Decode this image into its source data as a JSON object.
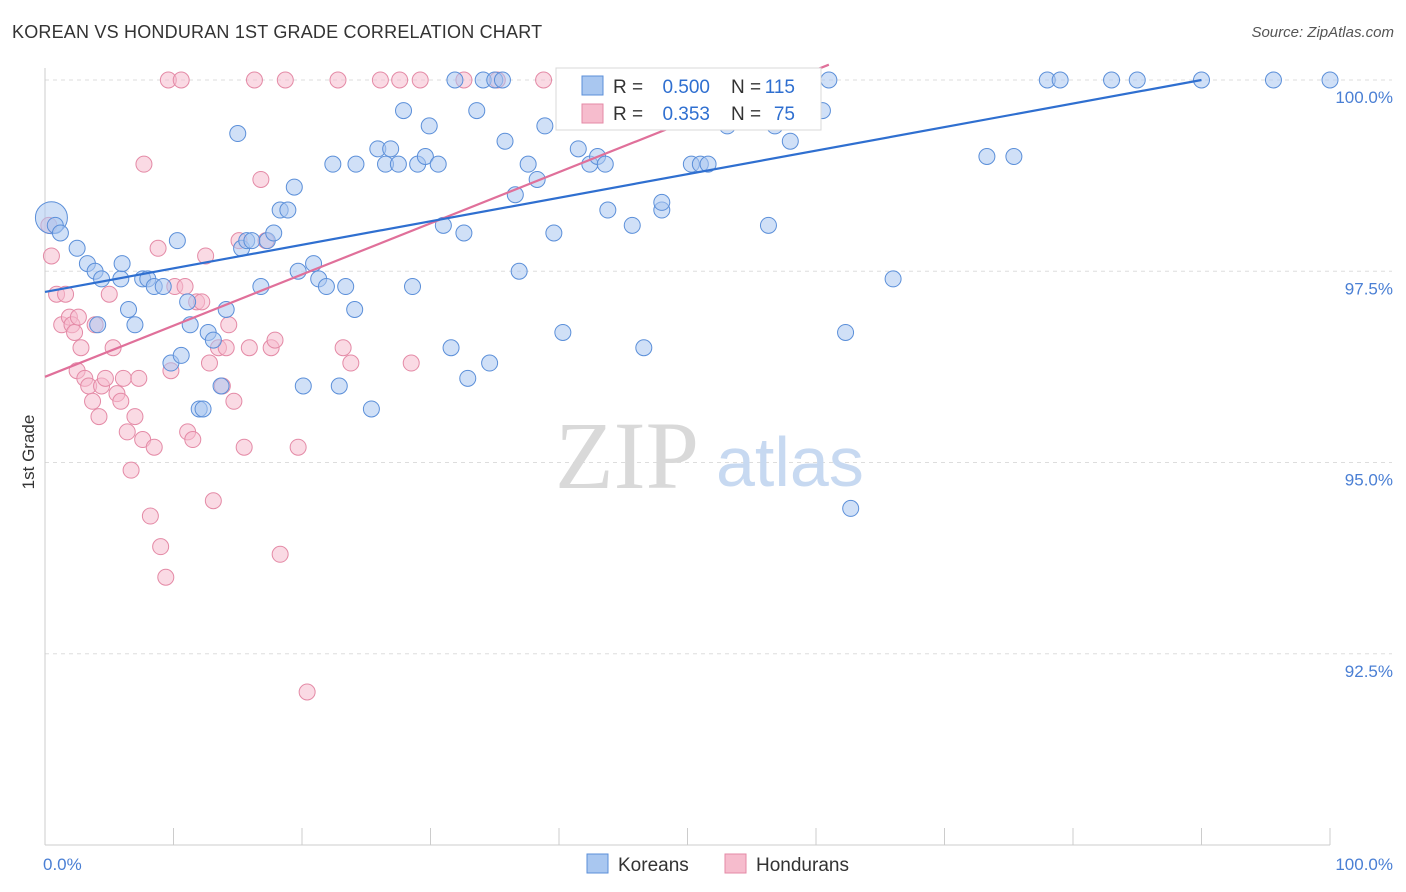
{
  "header": {
    "title": "KOREAN VS HONDURAN 1ST GRADE CORRELATION CHART",
    "source": "Source: ZipAtlas.com"
  },
  "watermark": {
    "zip": "ZIP",
    "atlas": "atlas"
  },
  "colors": {
    "korean_fill": "#a9c7f0",
    "korean_stroke": "#5b8fd9",
    "korean_line": "#2f6fd0",
    "honduran_fill": "#f6bccd",
    "honduran_stroke": "#e48aa6",
    "honduran_line": "#e0709a",
    "tick_text": "#4a7fd4",
    "grid": "#dddddd"
  },
  "chart_data": {
    "type": "scatter",
    "title": "KOREAN VS HONDURAN 1ST GRADE CORRELATION CHART",
    "ylabel": "1st Grade",
    "xlabel": "",
    "xlim": [
      0,
      100
    ],
    "ylim": [
      90.0,
      100.5
    ],
    "x_tick_labels": [
      {
        "value": 0,
        "label": "0.0%"
      },
      {
        "value": 100,
        "label": "100.0%"
      }
    ],
    "y_tick_labels": [
      {
        "value": 100.0,
        "label": "100.0%"
      },
      {
        "value": 97.5,
        "label": "97.5%"
      },
      {
        "value": 95.0,
        "label": "95.0%"
      },
      {
        "value": 92.5,
        "label": "92.5%"
      }
    ],
    "legend_position": "bottom-center",
    "stats_box": [
      {
        "series": "Koreans",
        "r_label": "R =",
        "r": "0.500",
        "n_label": "N =",
        "n": "115"
      },
      {
        "series": "Hondurans",
        "r_label": "R =",
        "r": "0.353",
        "n_label": "N =",
        "n": "75"
      }
    ],
    "series": [
      {
        "name": "Koreans",
        "trend": {
          "x": [
            0,
            90
          ],
          "y": [
            97.23,
            100.0
          ]
        },
        "points": [
          [
            0.5,
            98.2
          ],
          [
            0.8,
            98.1
          ],
          [
            1.2,
            98.0
          ],
          [
            2.5,
            97.8
          ],
          [
            3.3,
            97.6
          ],
          [
            3.9,
            97.5
          ],
          [
            4.4,
            97.4
          ],
          [
            5.9,
            97.4
          ],
          [
            6.0,
            97.6
          ],
          [
            4.1,
            96.8
          ],
          [
            6.5,
            97.0
          ],
          [
            7.0,
            96.8
          ],
          [
            7.6,
            97.4
          ],
          [
            8.0,
            97.4
          ],
          [
            8.5,
            97.3
          ],
          [
            9.2,
            97.3
          ],
          [
            9.8,
            96.3
          ],
          [
            10.3,
            97.9
          ],
          [
            10.6,
            96.4
          ],
          [
            11.1,
            97.1
          ],
          [
            11.3,
            96.8
          ],
          [
            12.0,
            95.7
          ],
          [
            12.3,
            95.7
          ],
          [
            12.7,
            96.7
          ],
          [
            13.1,
            96.6
          ],
          [
            13.7,
            96.0
          ],
          [
            14.1,
            97.0
          ],
          [
            15.0,
            99.3
          ],
          [
            15.3,
            97.8
          ],
          [
            15.7,
            97.9
          ],
          [
            16.1,
            97.9
          ],
          [
            16.8,
            97.3
          ],
          [
            17.3,
            97.9
          ],
          [
            17.8,
            98.0
          ],
          [
            18.3,
            98.3
          ],
          [
            18.9,
            98.3
          ],
          [
            19.4,
            98.6
          ],
          [
            19.7,
            97.5
          ],
          [
            20.1,
            96.0
          ],
          [
            20.9,
            97.6
          ],
          [
            21.3,
            97.4
          ],
          [
            21.9,
            97.3
          ],
          [
            22.4,
            98.9
          ],
          [
            22.9,
            96.0
          ],
          [
            23.4,
            97.3
          ],
          [
            24.1,
            97.0
          ],
          [
            24.2,
            98.9
          ],
          [
            25.4,
            95.7
          ],
          [
            25.9,
            99.1
          ],
          [
            26.5,
            98.9
          ],
          [
            26.9,
            99.1
          ],
          [
            27.5,
            98.9
          ],
          [
            27.9,
            99.6
          ],
          [
            28.6,
            97.3
          ],
          [
            29.0,
            98.9
          ],
          [
            29.6,
            99.0
          ],
          [
            29.9,
            99.4
          ],
          [
            30.6,
            98.9
          ],
          [
            31.0,
            98.1
          ],
          [
            31.6,
            96.5
          ],
          [
            31.9,
            100.0
          ],
          [
            32.6,
            98.0
          ],
          [
            32.9,
            96.1
          ],
          [
            33.6,
            99.6
          ],
          [
            34.1,
            100.0
          ],
          [
            34.6,
            96.3
          ],
          [
            35.0,
            100.0
          ],
          [
            35.6,
            100.0
          ],
          [
            35.8,
            99.2
          ],
          [
            36.6,
            98.5
          ],
          [
            36.9,
            97.5
          ],
          [
            37.6,
            98.9
          ],
          [
            38.3,
            98.7
          ],
          [
            38.9,
            99.4
          ],
          [
            39.6,
            98.0
          ],
          [
            40.3,
            96.7
          ],
          [
            41.0,
            100.0
          ],
          [
            41.5,
            99.1
          ],
          [
            42.4,
            98.9
          ],
          [
            43.0,
            99.0
          ],
          [
            43.6,
            98.9
          ],
          [
            43.8,
            98.3
          ],
          [
            45.0,
            100.0
          ],
          [
            45.7,
            98.1
          ],
          [
            46.6,
            96.5
          ],
          [
            47.3,
            100.0
          ],
          [
            48.0,
            98.3
          ],
          [
            48.0,
            98.4
          ],
          [
            49.5,
            100.0
          ],
          [
            50.3,
            98.9
          ],
          [
            51.0,
            98.9
          ],
          [
            51.6,
            98.9
          ],
          [
            53.1,
            99.4
          ],
          [
            54.5,
            100.0
          ],
          [
            56.3,
            98.1
          ],
          [
            56.8,
            99.4
          ],
          [
            58.0,
            99.2
          ],
          [
            58.5,
            99.6
          ],
          [
            59.5,
            100.0
          ],
          [
            60.5,
            99.6
          ],
          [
            61.0,
            100.0
          ],
          [
            62.3,
            96.7
          ],
          [
            62.7,
            94.4
          ],
          [
            66.0,
            97.4
          ],
          [
            73.3,
            99.0
          ],
          [
            75.4,
            99.0
          ],
          [
            78.0,
            100.0
          ],
          [
            79.0,
            100.0
          ],
          [
            83.0,
            100.0
          ],
          [
            85.0,
            100.0
          ],
          [
            90.0,
            100.0
          ],
          [
            95.6,
            100.0
          ],
          [
            100.0,
            100.0
          ]
        ]
      },
      {
        "name": "Hondurans",
        "trend": {
          "x": [
            0,
            61
          ],
          "y": [
            96.12,
            100.2
          ]
        },
        "points": [
          [
            0.3,
            98.1
          ],
          [
            0.5,
            97.7
          ],
          [
            0.9,
            97.2
          ],
          [
            1.3,
            96.8
          ],
          [
            1.6,
            97.2
          ],
          [
            1.9,
            96.9
          ],
          [
            2.1,
            96.8
          ],
          [
            2.3,
            96.7
          ],
          [
            2.5,
            96.2
          ],
          [
            2.6,
            96.9
          ],
          [
            2.8,
            96.5
          ],
          [
            3.1,
            96.1
          ],
          [
            3.4,
            96.0
          ],
          [
            3.7,
            95.8
          ],
          [
            3.9,
            96.8
          ],
          [
            4.2,
            95.6
          ],
          [
            4.4,
            96.0
          ],
          [
            4.7,
            96.1
          ],
          [
            5.0,
            97.2
          ],
          [
            5.3,
            96.5
          ],
          [
            5.6,
            95.9
          ],
          [
            5.9,
            95.8
          ],
          [
            6.1,
            96.1
          ],
          [
            6.4,
            95.4
          ],
          [
            6.7,
            94.9
          ],
          [
            7.0,
            95.6
          ],
          [
            7.3,
            96.1
          ],
          [
            7.6,
            95.3
          ],
          [
            7.7,
            98.9
          ],
          [
            8.2,
            94.3
          ],
          [
            8.5,
            95.2
          ],
          [
            8.8,
            97.8
          ],
          [
            9.0,
            93.9
          ],
          [
            9.4,
            93.5
          ],
          [
            9.6,
            100.0
          ],
          [
            9.8,
            96.2
          ],
          [
            10.1,
            97.3
          ],
          [
            10.6,
            100.0
          ],
          [
            10.9,
            97.3
          ],
          [
            11.1,
            95.4
          ],
          [
            11.5,
            95.3
          ],
          [
            11.8,
            97.1
          ],
          [
            12.2,
            97.1
          ],
          [
            12.5,
            97.7
          ],
          [
            12.8,
            96.3
          ],
          [
            13.1,
            94.5
          ],
          [
            13.5,
            96.5
          ],
          [
            13.8,
            96.0
          ],
          [
            14.1,
            96.5
          ],
          [
            14.3,
            96.8
          ],
          [
            14.7,
            95.8
          ],
          [
            15.1,
            97.9
          ],
          [
            15.5,
            95.2
          ],
          [
            15.9,
            96.5
          ],
          [
            16.3,
            100.0
          ],
          [
            16.8,
            98.7
          ],
          [
            17.2,
            97.9
          ],
          [
            17.6,
            96.5
          ],
          [
            17.9,
            96.6
          ],
          [
            18.3,
            93.8
          ],
          [
            18.7,
            100.0
          ],
          [
            19.7,
            95.2
          ],
          [
            20.4,
            92.0
          ],
          [
            22.8,
            100.0
          ],
          [
            23.2,
            96.5
          ],
          [
            23.8,
            96.3
          ],
          [
            26.1,
            100.0
          ],
          [
            27.6,
            100.0
          ],
          [
            28.5,
            96.3
          ],
          [
            29.2,
            100.0
          ],
          [
            32.6,
            100.0
          ],
          [
            35.2,
            100.0
          ],
          [
            38.8,
            100.0
          ],
          [
            43.0,
            100.0
          ],
          [
            53.3,
            100.0
          ]
        ]
      }
    ]
  },
  "legend": {
    "items": [
      {
        "label": "Koreans"
      },
      {
        "label": "Hondurans"
      }
    ]
  }
}
